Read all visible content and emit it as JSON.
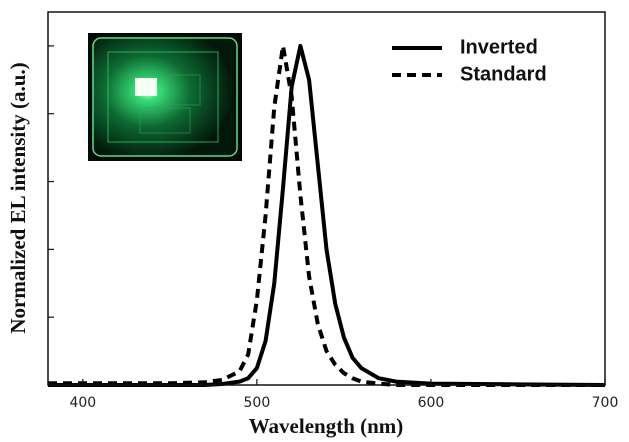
{
  "chart_data": {
    "type": "line",
    "x_label": "Wavelength (nm)",
    "y_label": "Normalized EL intensity (a.u.)",
    "x": [
      380,
      450,
      470,
      480,
      490,
      495,
      500,
      505,
      510,
      515,
      520,
      525,
      530,
      535,
      540,
      545,
      550,
      555,
      560,
      570,
      580,
      600,
      650,
      700
    ],
    "series": [
      {
        "name": "Inverted",
        "color": "#000000",
        "dash": "solid",
        "values": [
          0,
          0,
          0,
          0.003,
          0.01,
          0.02,
          0.05,
          0.13,
          0.3,
          0.58,
          0.88,
          1.0,
          0.9,
          0.65,
          0.4,
          0.24,
          0.14,
          0.08,
          0.05,
          0.02,
          0.01,
          0.004,
          0.002,
          0
        ]
      },
      {
        "name": "Standard",
        "color": "#000000",
        "dash": "dashed",
        "values": [
          0.005,
          0.005,
          0.008,
          0.015,
          0.04,
          0.09,
          0.25,
          0.5,
          0.82,
          1.0,
          0.85,
          0.56,
          0.32,
          0.18,
          0.1,
          0.06,
          0.035,
          0.02,
          0.01,
          0.004,
          0,
          0,
          0,
          0
        ]
      }
    ],
    "xlim": [
      380,
      700
    ],
    "xticks": [
      400,
      500,
      600,
      700
    ],
    "ylim": [
      0,
      1.1
    ],
    "yticks": [
      0,
      0.2,
      0.4,
      0.6,
      0.8,
      1.0
    ],
    "legend": "upper-right"
  }
}
